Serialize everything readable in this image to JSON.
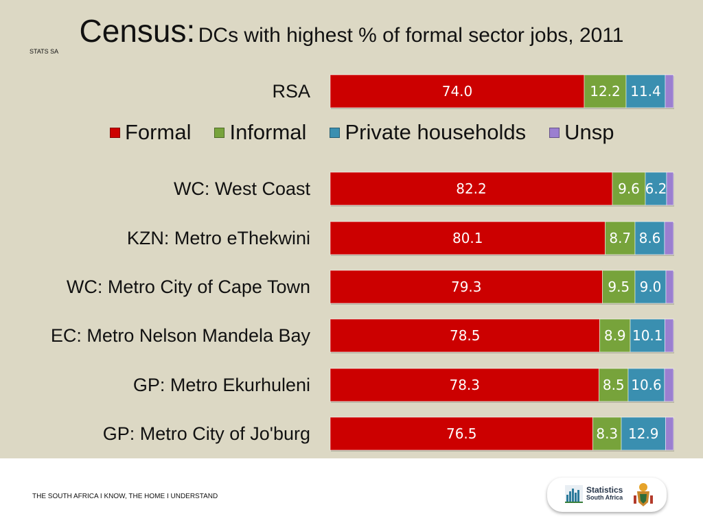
{
  "title": {
    "main": "Census:",
    "sub": "DCs with highest % of formal sector jobs, 2011"
  },
  "source": "STATS SA",
  "legend": [
    {
      "label": "Formal",
      "color": "#cc0000"
    },
    {
      "label": "Informal",
      "color": "#77a33b"
    },
    {
      "label": "Private households",
      "color": "#3a8fb0"
    },
    {
      "label": "Unsp",
      "color": "#9b7fd0"
    }
  ],
  "chart_data": {
    "type": "bar",
    "orientation": "horizontal",
    "stacked": true,
    "percent": true,
    "categories": [
      "RSA",
      "WC: West Coast",
      "KZN: Metro eThekwini",
      "WC: Metro City of Cape Town",
      "EC: Metro Nelson Mandela Bay",
      "GP: Metro Ekurhuleni",
      "GP: Metro City of Jo'burg"
    ],
    "series": [
      {
        "name": "Formal",
        "color": "#cc0000",
        "values": [
          74.0,
          82.2,
          80.1,
          79.3,
          78.5,
          78.3,
          76.5
        ],
        "labels": [
          "74.0",
          "82.2",
          "80.1",
          "79.3",
          "78.5",
          "78.3",
          "76.5"
        ]
      },
      {
        "name": "Informal",
        "color": "#77a33b",
        "values": [
          12.2,
          9.6,
          8.7,
          9.5,
          8.9,
          8.5,
          8.3
        ],
        "labels": [
          "12.2",
          "9.6",
          "8.7",
          "9.5",
          "8.9",
          "8.5",
          "8.3"
        ]
      },
      {
        "name": "Private households",
        "color": "#3a8fb0",
        "values": [
          11.4,
          6.2,
          8.6,
          9.0,
          10.1,
          10.6,
          12.9
        ],
        "labels": [
          "11.4",
          "6.2",
          "8.6",
          "9.0",
          "10.1",
          "10.6",
          "12.9"
        ]
      },
      {
        "name": "Unsp",
        "color": "#9b7fd0",
        "values": [
          2.4,
          2.0,
          2.6,
          2.2,
          2.5,
          2.6,
          2.3
        ],
        "labels": [
          "",
          "",
          "",
          "",
          "",
          "",
          ""
        ]
      }
    ],
    "xlim": [
      0,
      100
    ],
    "legend_position": "below-first-bar",
    "grid": false
  },
  "footer": {
    "tagline": "THE SOUTH AFRICA I KNOW, THE HOME I UNDERSTAND",
    "logo_line1": "Statistics",
    "logo_line2": "South Africa"
  }
}
